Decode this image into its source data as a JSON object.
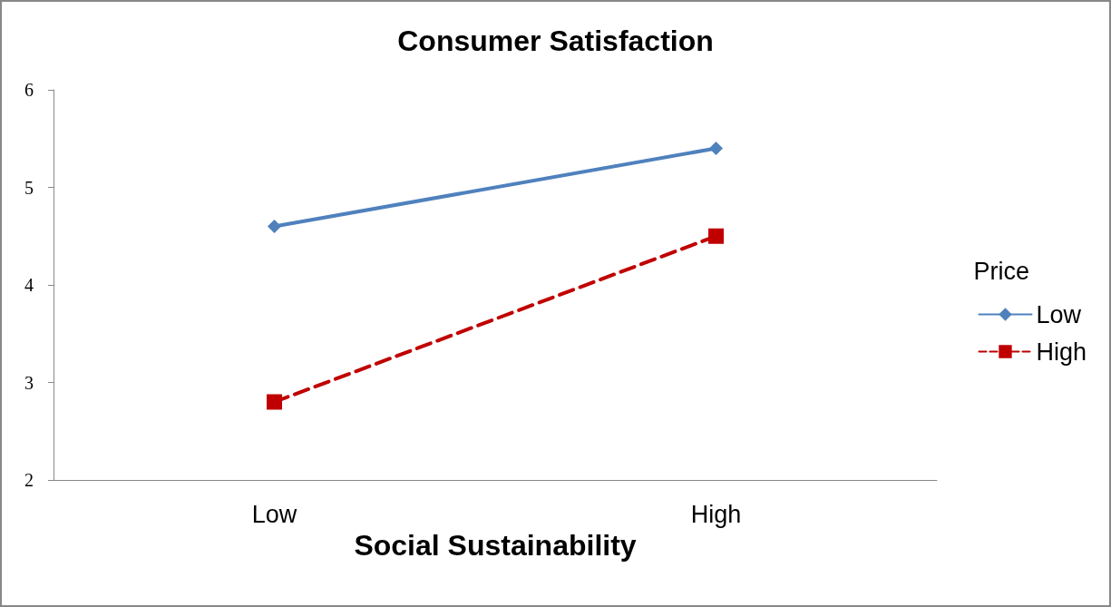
{
  "chart_data": {
    "type": "line",
    "title": "Consumer Satisfaction",
    "xlabel": "Social Sustainability",
    "legend_title": "Price",
    "categories": [
      "Low",
      "High"
    ],
    "series": [
      {
        "name": "Low",
        "color": "#4f81bd",
        "values": [
          4.6,
          5.4
        ],
        "marker": "diamond",
        "line_style": "solid"
      },
      {
        "name": "High",
        "color": "#c00000",
        "values": [
          2.8,
          4.5
        ],
        "marker": "square",
        "line_style": "dashed"
      }
    ],
    "ylim": [
      2,
      6
    ],
    "yticks": [
      2,
      3,
      4,
      5,
      6
    ],
    "grid": false,
    "legend": "right"
  }
}
